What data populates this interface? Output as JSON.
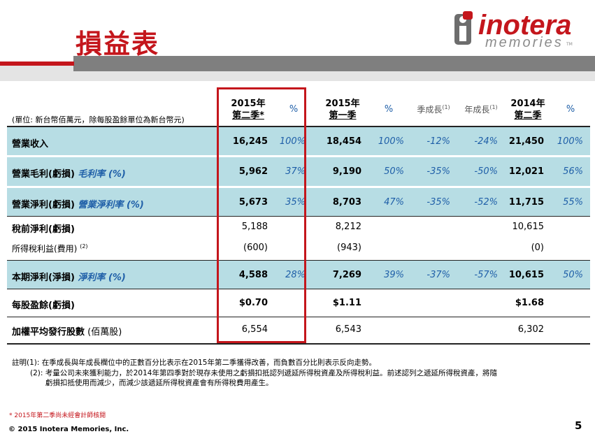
{
  "title": "損益表",
  "logo": {
    "name": "inotera",
    "sub": "memories",
    "tm": "TM"
  },
  "unit_note": "(單位: 新台幣佰萬元，除每股盈餘單位為新台幣元)",
  "headers": {
    "c1_line1": "2015年",
    "c1_line2": "第二季*",
    "c2": "%",
    "c3_line1": "2015年",
    "c3_line2": "第一季",
    "c4": "%",
    "c5": "季成長",
    "c5_sup": "(1)",
    "c6": "年成長",
    "c6_sup": "(1)",
    "c7_line1": "2014年",
    "c7_line2": "第二季",
    "c8": "%"
  },
  "rows": [
    {
      "label": "營業收入",
      "label_it": "",
      "sup": "",
      "v1": "16,245",
      "p1": "100%",
      "v2": "18,454",
      "p2": "100%",
      "qoq": "-12%",
      "yoy": "-24%",
      "v3": "21,450",
      "p3": "100%"
    },
    {
      "label": "營業毛利(虧損) ",
      "label_it": "毛利率 (%)",
      "sup": "",
      "v1": "5,962",
      "p1": "37%",
      "v2": "9,190",
      "p2": "50%",
      "qoq": "-35%",
      "yoy": "-50%",
      "v3": "12,021",
      "p3": "56%"
    },
    {
      "label": "營業淨利(虧損) ",
      "label_it": "營業淨利率 (%)",
      "sup": "",
      "v1": "5,673",
      "p1": "35%",
      "v2": "8,703",
      "p2": "47%",
      "qoq": "-35%",
      "yoy": "-52%",
      "v3": "11,715",
      "p3": "55%"
    },
    {
      "label": "稅前淨利(虧損)",
      "label_it": "",
      "sup": "",
      "v1": "5,188",
      "p1": "",
      "v2": "8,212",
      "p2": "",
      "qoq": "",
      "yoy": "",
      "v3": "10,615",
      "p3": ""
    },
    {
      "label": "所得稅利益(費用)",
      "label_it": "",
      "sup": "(2)",
      "v1": "(600)",
      "p1": "",
      "v2": "(943)",
      "p2": "",
      "qoq": "",
      "yoy": "",
      "v3": "(0)",
      "p3": ""
    },
    {
      "label": "本期淨利(淨損) ",
      "label_it": "淨利率 (%)",
      "sup": "",
      "v1": "4,588",
      "p1": "28%",
      "v2": "7,269",
      "p2": "39%",
      "qoq": "-37%",
      "yoy": "-57%",
      "v3": "10,615",
      "p3": "50%"
    },
    {
      "label": "每股盈餘(虧損)",
      "label_it": "",
      "sup": "",
      "v1": "$0.70",
      "p1": "",
      "v2": "$1.11",
      "p2": "",
      "qoq": "",
      "yoy": "",
      "v3": "$1.68",
      "p3": ""
    },
    {
      "label": "加權平均發行股數",
      "label_it": "",
      "sup": "",
      "label_tail": " (佰萬股)",
      "v1": "6,554",
      "p1": "",
      "v2": "6,543",
      "p2": "",
      "qoq": "",
      "yoy": "",
      "v3": "6,302",
      "p3": ""
    }
  ],
  "notes": {
    "n1": "註明(1): 在季成長與年成長欄位中的正數百分比表示在2015年第二季獲得改善，而負數百分比則表示反向走勢。",
    "n2a": "(2): 考量公司未來獲利能力，於2014年第四季對於現存未使用之虧損扣抵認列遞延所得稅資產及所得稅利益。前述認列之遞延所得稅資產，將隨",
    "n2b": "虧損扣抵使用而減少，而減少該遞延所得稅資產會有所得稅費用產生。"
  },
  "footnote": "* 2015年第二季尚未經會計師核閱",
  "copyright": "© 2015 Inotera Memories, Inc.",
  "page_number": "5",
  "colors": {
    "accent_red": "#c4161c",
    "row_highlight": "#b7dde4",
    "pct_blue": "#1f5fa8"
  }
}
